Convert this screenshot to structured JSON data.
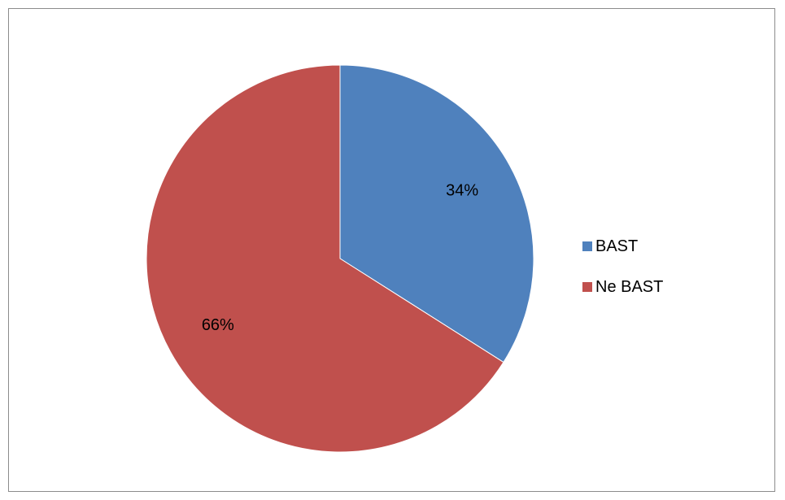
{
  "chart_data": {
    "type": "pie",
    "categories": [
      "BAST",
      "Ne BAST"
    ],
    "values": [
      34,
      66
    ],
    "data_labels": [
      "34%",
      "66%"
    ],
    "colors": [
      "#4f81bd",
      "#c0504d"
    ],
    "legend": "right",
    "title": ""
  }
}
